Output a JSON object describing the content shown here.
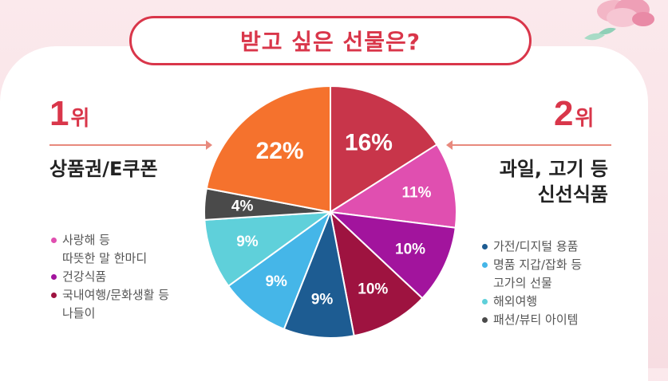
{
  "title": "받고 싶은 선물은?",
  "rank1": {
    "number": "1",
    "suffix": "위",
    "label": "상품권/E쿠폰"
  },
  "rank2": {
    "number": "2",
    "suffix": "위",
    "label_lines": [
      "과일, 고기 등",
      "신선식품"
    ]
  },
  "legend_left": [
    {
      "lines": [
        "사랑해 등",
        "따뜻한 말 한마디"
      ],
      "color": "#e04fb0"
    },
    {
      "lines": [
        "건강식품"
      ],
      "color": "#a2149d"
    },
    {
      "lines": [
        "국내여행/문화생활 등",
        "나들이"
      ],
      "color": "#9e1340"
    }
  ],
  "legend_right": [
    {
      "lines": [
        "가전/디지털 용품"
      ],
      "color": "#1d5c92"
    },
    {
      "lines": [
        "명품 지갑/잡화 등",
        "고가의 선물"
      ],
      "color": "#45b6e8"
    },
    {
      "lines": [
        "해외여행"
      ],
      "color": "#5fd0da"
    },
    {
      "lines": [
        "패션/뷰티 아이템"
      ],
      "color": "#4a4a4a"
    }
  ],
  "chart_data": {
    "type": "pie",
    "title": "받고 싶은 선물은?",
    "start_angle_deg": 0,
    "direction": "clockwise",
    "slices": [
      {
        "label": "과일, 고기 등 신선식품",
        "value": 16,
        "display": "16%",
        "color": "#c8354a"
      },
      {
        "label": "사랑해 등 따뜻한 말 한마디",
        "value": 11,
        "display": "11%",
        "color": "#e04fb0"
      },
      {
        "label": "건강식품",
        "value": 10,
        "display": "10%",
        "color": "#a2149d"
      },
      {
        "label": "국내여행/문화생활 등 나들이",
        "value": 10,
        "display": "10%",
        "color": "#9e1340"
      },
      {
        "label": "가전/디지털 용품",
        "value": 9,
        "display": "9%",
        "color": "#1d5c92"
      },
      {
        "label": "명품 지갑/잡화 등 고가의 선물",
        "value": 9,
        "display": "9%",
        "color": "#45b6e8"
      },
      {
        "label": "해외여행",
        "value": 9,
        "display": "9%",
        "color": "#5fd0da"
      },
      {
        "label": "패션/뷰티 아이템",
        "value": 4,
        "display": "4%",
        "color": "#4a4a4a"
      },
      {
        "label": "상품권/E쿠폰",
        "value": 22,
        "display": "22%",
        "color": "#f5722d"
      }
    ]
  }
}
